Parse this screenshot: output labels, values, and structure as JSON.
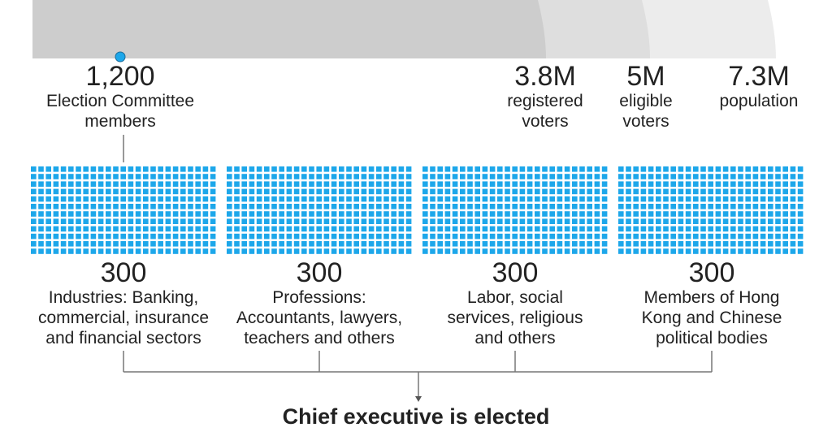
{
  "stats": [
    {
      "value": "1,200",
      "label": "Election Committee\nmembers"
    },
    {
      "value": "3.8M",
      "label": "registered\nvoters"
    },
    {
      "value": "5M",
      "label": "eligible\nvoters"
    },
    {
      "value": "7.3M",
      "label": "population"
    }
  ],
  "groups": [
    {
      "value": "300",
      "label": "Industries: Banking,\ncommercial, insurance\nand financial sectors",
      "members": 300
    },
    {
      "value": "300",
      "label": "Professions:\nAccountants, lawyers,\nteachers and others",
      "members": 300
    },
    {
      "value": "300",
      "label": "Labor, social\nservices, religious\nand others",
      "members": 300
    },
    {
      "value": "300",
      "label": "Members of Hong\nKong and Chinese\npolitical bodies",
      "members": 300
    }
  ],
  "result": "Chief executive is elected",
  "colors": {
    "square": "#1da7ea",
    "population": "#ececec",
    "eligible": "#dedede",
    "registered": "#cdcdcd",
    "line": "#777777"
  }
}
